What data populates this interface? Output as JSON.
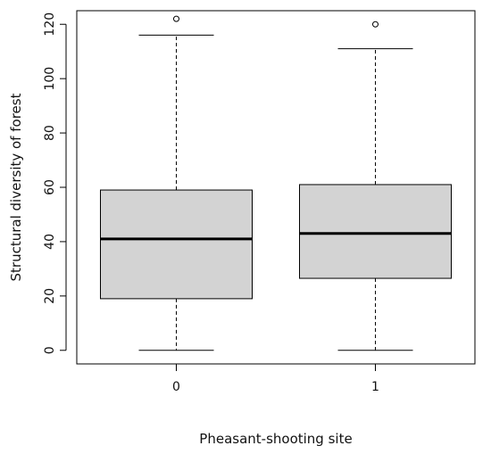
{
  "chart_data": {
    "type": "boxplot",
    "title": "",
    "xlabel": "Pheasant-shooting site",
    "ylabel": "Structural diversity of forest",
    "ylim": [
      -5,
      125
    ],
    "yticks": [
      0,
      20,
      40,
      60,
      80,
      100,
      120
    ],
    "categories": [
      "0",
      "1"
    ],
    "box_fill": "#d3d3d3",
    "line_color": "#000000",
    "grid": false,
    "boxes": [
      {
        "category": "0",
        "whisker_low": 0,
        "q1": 19,
        "median": 41,
        "q3": 59,
        "whisker_high": 116,
        "outliers": [
          122
        ]
      },
      {
        "category": "1",
        "whisker_low": 0,
        "q1": 26.5,
        "median": 43,
        "q3": 61,
        "whisker_high": 111,
        "outliers": [
          120
        ]
      }
    ]
  }
}
